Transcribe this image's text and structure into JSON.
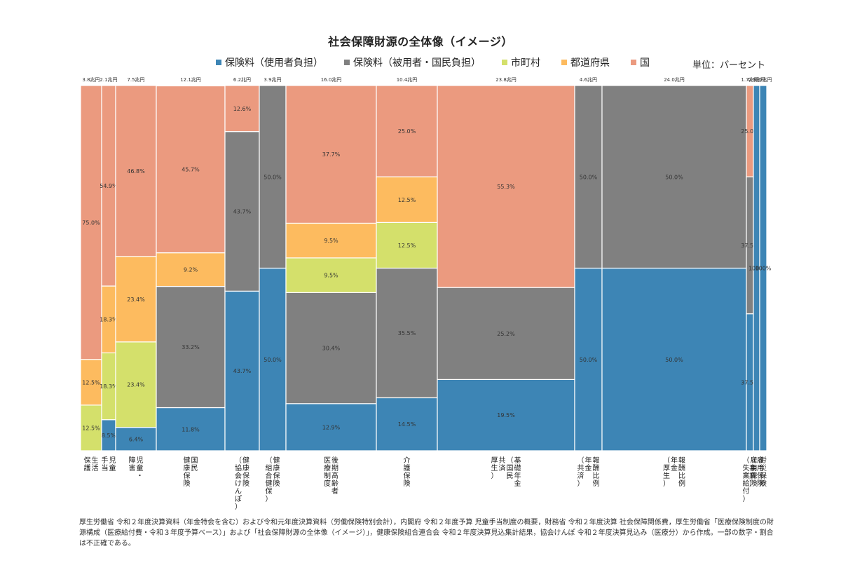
{
  "page": {
    "title": "社会保障財源の全体像（イメージ）",
    "unit_label": "単位：パーセント",
    "source_note": "厚生労働省 令和２年度決算資料（年金特会を含む）および令和元年度決算資料（労働保険特別会計），内閣府 令和２年度予算 児童手当制度の概要，財務省 令和２年度決算 社会保障関係費，厚生労働省「医療保険制度の財源構成（医療給付費・令和３年度予算ベース）」および「社会保障財源の全体像（イメージ）」，健康保険組合連合会 令和２年度決算見込集計結果，協会けんぽ 令和２年度決算見込み（医療分）から作成。一部の数字・割合は不正確である。"
  },
  "legend": [
    {
      "name": "保険料（使用者負担）",
      "color": "#3d85b5"
    },
    {
      "name": "保険料（被用者・国民負担）",
      "color": "#808080"
    },
    {
      "name": "市町村",
      "color": "#d4e06b"
    },
    {
      "name": "都道府県",
      "color": "#fdbb5f"
    },
    {
      "name": "国",
      "color": "#eb9a7f"
    }
  ],
  "chart_data": {
    "type": "mosaic",
    "title": "社会保障財源の全体像（イメージ）",
    "unit": "パーセント",
    "series": [
      "保険料（使用者負担）",
      "保険料（被用者・国民負担）",
      "市町村",
      "都道府県",
      "国"
    ],
    "colors": [
      "#3d85b5",
      "#808080",
      "#d4e06b",
      "#fdbb5f",
      "#eb9a7f"
    ],
    "ylim": [
      0,
      100
    ],
    "columns": [
      {
        "label": "生活保護",
        "label_lines": [
          "生活",
          "保護"
        ],
        "total": "3.8兆円",
        "values": [
          0,
          0,
          12.5,
          12.5,
          75.0
        ],
        "labels": [
          "",
          "",
          "12.5%",
          "12.5%",
          "75.0%"
        ]
      },
      {
        "label": "児童手当",
        "label_lines": [
          "児童",
          "手当"
        ],
        "total": "2.1兆円",
        "values": [
          8.5,
          0,
          18.3,
          18.3,
          54.9
        ],
        "labels": [
          "8.5%",
          "",
          "18.3%",
          "18.3%",
          "54.9%"
        ]
      },
      {
        "label": "児童・障害",
        "label_lines": [
          "児童・",
          "障害"
        ],
        "total": "7.5兆円",
        "values": [
          6.4,
          0,
          23.4,
          23.4,
          46.8
        ],
        "labels": [
          "6.4%",
          "",
          "23.4%",
          "23.4%",
          "46.8%"
        ]
      },
      {
        "label": "国民健康保険",
        "label_lines": [
          "国民",
          "健康保険"
        ],
        "total": "12.1兆円",
        "values": [
          11.8,
          33.2,
          0,
          9.2,
          45.7
        ],
        "labels": [
          "11.8%",
          "33.2%",
          "",
          "9.2%",
          "45.7%"
        ]
      },
      {
        "label": "健康保険（協会けんぽ）",
        "label_lines": [
          "健康保険",
          "（協会けんぽ）"
        ],
        "total": "6.2兆円",
        "values": [
          43.7,
          43.7,
          0,
          0,
          12.6
        ],
        "labels": [
          "43.7%",
          "43.7%",
          "",
          "",
          "12.6%"
        ]
      },
      {
        "label": "健康保険（組合健保）",
        "label_lines": [
          "健康保険",
          "（組合健保）"
        ],
        "total": "3.9兆円",
        "values": [
          50.0,
          50.0,
          0,
          0,
          0
        ],
        "labels": [
          "50.0%",
          "50.0%",
          "",
          "",
          ""
        ]
      },
      {
        "label": "後期高齢者医療制度",
        "label_lines": [
          "後期高齢者",
          "医療制度"
        ],
        "total": "16.0兆円",
        "values": [
          12.9,
          30.4,
          9.5,
          9.5,
          37.7
        ],
        "labels": [
          "12.9%",
          "30.4%",
          "9.5%",
          "9.5%",
          "37.7%"
        ]
      },
      {
        "label": "介護保険",
        "label_lines": [
          "介護保険"
        ],
        "total": "10.4兆円",
        "values": [
          14.5,
          35.5,
          12.5,
          12.5,
          25.0
        ],
        "labels": [
          "14.5%",
          "35.5%",
          "12.5%",
          "12.5%",
          "25.0%"
        ]
      },
      {
        "label": "基礎年金（国民共済厚生）",
        "label_lines": [
          "基礎年金",
          "（国民",
          "共済",
          "厚生）"
        ],
        "total": "23.8兆円",
        "values": [
          19.5,
          25.2,
          0,
          0,
          55.3
        ],
        "labels": [
          "19.5%",
          "25.2%",
          "",
          "",
          "55.3%"
        ]
      },
      {
        "label": "報酬比例年金（共済）",
        "label_lines": [
          "報酬比例",
          "年金",
          "（共済）"
        ],
        "total": "4.6兆円",
        "values": [
          50.0,
          50.0,
          0,
          0,
          0
        ],
        "labels": [
          "50.0%",
          "50.0%",
          "",
          "",
          ""
        ]
      },
      {
        "label": "報酬比例年金（厚生）",
        "label_lines": [
          "報酬比例",
          "年金",
          "（厚生）"
        ],
        "total": "24.0兆円",
        "values": [
          50.0,
          50.0,
          0,
          0,
          0
        ],
        "labels": [
          "50.0%",
          "50.0%",
          "",
          "",
          ""
        ]
      },
      {
        "label": "雇用保険（失業給付）",
        "label_lines": [
          "雇用保険",
          "（失業給付）"
        ],
        "total": "1.7兆円",
        "values": [
          37.5,
          37.5,
          0,
          0,
          25.0
        ],
        "labels": [
          "37.5%",
          "37.5%",
          "",
          "",
          "25.0%"
        ]
      },
      {
        "label": "雇用保険（事業）",
        "label_lines": [
          "雇用保険",
          "（事業）"
        ],
        "total": "0.6兆円",
        "values": [
          100,
          0,
          0,
          0,
          0
        ],
        "labels": [
          "100%",
          "",
          "",
          "",
          ""
        ]
      },
      {
        "label": "労災保険",
        "label_lines": [
          "労災保険"
        ],
        "total": "1.0兆円",
        "values": [
          100,
          0,
          0,
          0,
          0
        ],
        "labels": [
          "100%",
          "",
          "",
          "",
          ""
        ]
      }
    ]
  }
}
